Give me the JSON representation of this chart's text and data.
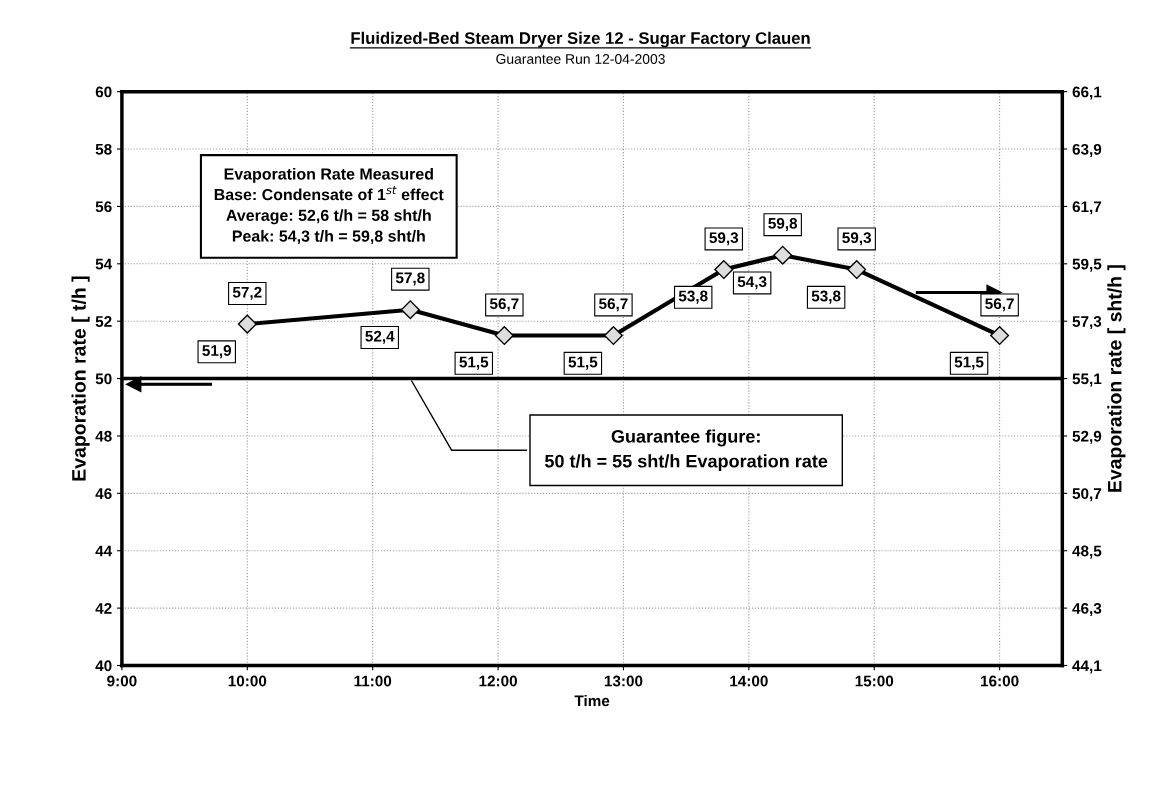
{
  "chart_data": {
    "type": "line",
    "title": "Fluidized-Bed Steam Dryer Size 12 - Sugar Factory Clauen",
    "subtitle": "Guarantee Run 12-04-2003",
    "xlabel": "Time",
    "ylabel": "Evaporation rate [ t/h ]",
    "y2label": "Evaporation rate [ sht/h ]",
    "x": [
      10.0,
      11.3,
      12.05,
      12.92,
      13.8,
      14.27,
      14.86,
      16.0
    ],
    "series": [
      {
        "color": "#000000",
        "values": [
          51.9,
          52.4,
          51.5,
          51.5,
          53.8,
          54.3,
          53.8,
          51.5
        ],
        "value_labels": [
          "51,9",
          "52,4",
          "51,5",
          "51,5",
          "53,8",
          "54,3",
          "53,8",
          "51,5"
        ]
      }
    ],
    "marker": "diamond",
    "line_style": "solid",
    "grid": true,
    "legend": false,
    "xlim": [
      9,
      16.5
    ],
    "xticks": [
      {
        "value": 9,
        "label": "9:00"
      },
      {
        "value": 10,
        "label": "10:00"
      },
      {
        "value": 11,
        "label": "11:00"
      },
      {
        "value": 12,
        "label": "12:00"
      },
      {
        "value": 13,
        "label": "13:00"
      },
      {
        "value": 14,
        "label": "14:00"
      },
      {
        "value": 15,
        "label": "15:00"
      },
      {
        "value": 16,
        "label": "16:00"
      }
    ],
    "ylim": [
      40,
      60
    ],
    "yticks": [
      40,
      42,
      44,
      46,
      48,
      50,
      52,
      54,
      56,
      58,
      60
    ],
    "y2lim": [
      44.1,
      66.1
    ],
    "y2ticks": [
      {
        "value": 44.1,
        "label": "44,1"
      },
      {
        "value": 46.3,
        "label": "46,3"
      },
      {
        "value": 48.5,
        "label": "48,5"
      },
      {
        "value": 50.7,
        "label": "50,7"
      },
      {
        "value": 52.9,
        "label": "52,9"
      },
      {
        "value": 55.1,
        "label": "55,1"
      },
      {
        "value": 57.3,
        "label": "57,3"
      },
      {
        "value": 59.5,
        "label": "59,5"
      },
      {
        "value": 61.7,
        "label": "61,7"
      },
      {
        "value": 63.9,
        "label": "63,9"
      },
      {
        "value": 66.1,
        "label": "66,1"
      }
    ],
    "ref_lines": [
      {
        "axis": "y",
        "value": 50,
        "label": "Guarantee figure:\n50 t/h = 55 sht/h Evaporation rate",
        "color": "#000000",
        "line_style": "solid"
      }
    ],
    "annotations": [
      {
        "text": "57,2",
        "x": 10.0,
        "y": 51.9
      },
      {
        "text": "57,8",
        "x": 11.3,
        "y": 52.4
      },
      {
        "text": "56,7",
        "x": 12.05,
        "y": 51.5
      },
      {
        "text": "56,7",
        "x": 12.92,
        "y": 51.5
      },
      {
        "text": "59,3",
        "x": 13.8,
        "y": 53.8
      },
      {
        "text": "59,8",
        "x": 14.27,
        "y": 54.3
      },
      {
        "text": "59,3",
        "x": 14.86,
        "y": 53.8
      },
      {
        "text": "56,7",
        "x": 16.0,
        "y": 51.5
      },
      "Evaporation Rate Measured\nBase: Condensate of 1$^{st}$ effect\nAverage: 52,6 t/h = 58 sht/h\nPeak: 54,3 t/h = 59,8 sht/h"
    ]
  }
}
